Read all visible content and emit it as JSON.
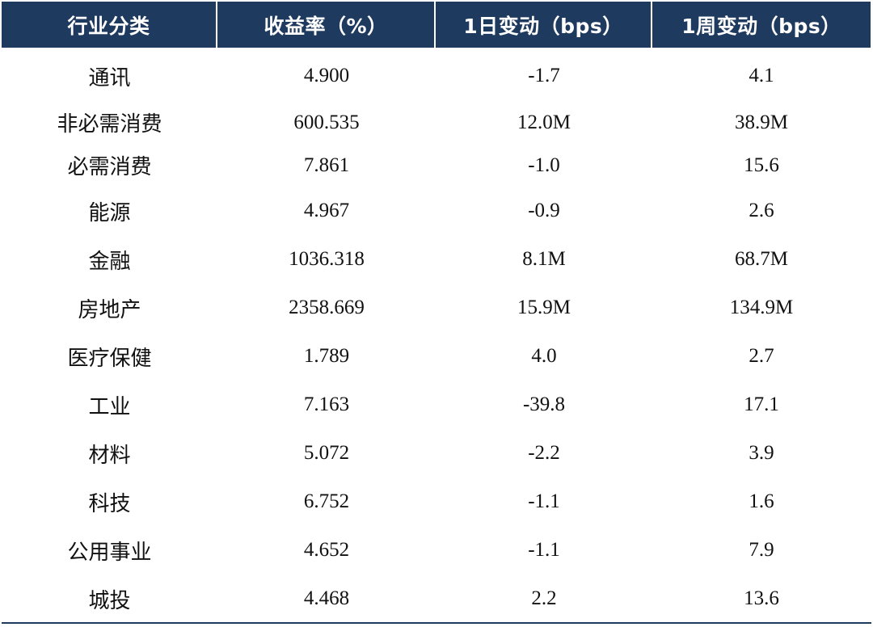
{
  "table": {
    "headers": [
      "行业分类",
      "收益率（%）",
      "1日变动（bps）",
      "1周变动（bps）"
    ],
    "rows": [
      {
        "sector": "通讯",
        "yield": "4.900",
        "change_1d": "-1.7",
        "change_1w": "4.1"
      },
      {
        "sector": "非必需消费",
        "yield": "600.535",
        "change_1d": "12.0M",
        "change_1w": "38.9M"
      },
      {
        "sector": "必需消费",
        "yield": "7.861",
        "change_1d": "-1.0",
        "change_1w": "15.6"
      },
      {
        "sector": "能源",
        "yield": "4.967",
        "change_1d": "-0.9",
        "change_1w": "2.6"
      },
      {
        "sector": "金融",
        "yield": "1036.318",
        "change_1d": "8.1M",
        "change_1w": "68.7M"
      },
      {
        "sector": "房地产",
        "yield": "2358.669",
        "change_1d": "15.9M",
        "change_1w": "134.9M"
      },
      {
        "sector": "医疗保健",
        "yield": "1.789",
        "change_1d": "4.0",
        "change_1w": "2.7"
      },
      {
        "sector": "工业",
        "yield": "7.163",
        "change_1d": "-39.8",
        "change_1w": "17.1"
      },
      {
        "sector": "材料",
        "yield": "5.072",
        "change_1d": "-2.2",
        "change_1w": "3.9"
      },
      {
        "sector": "科技",
        "yield": "6.752",
        "change_1d": "-1.1",
        "change_1w": "1.6"
      },
      {
        "sector": "公用事业",
        "yield": "4.652",
        "change_1d": "-1.1",
        "change_1w": "7.9"
      },
      {
        "sector": "城投",
        "yield": "4.468",
        "change_1d": "2.2",
        "change_1w": "13.6"
      }
    ]
  },
  "colors": {
    "header_bg": "#1f3a5f",
    "header_text": "#ffffff",
    "body_text": "#111111",
    "rule": "#1f3a5f"
  }
}
